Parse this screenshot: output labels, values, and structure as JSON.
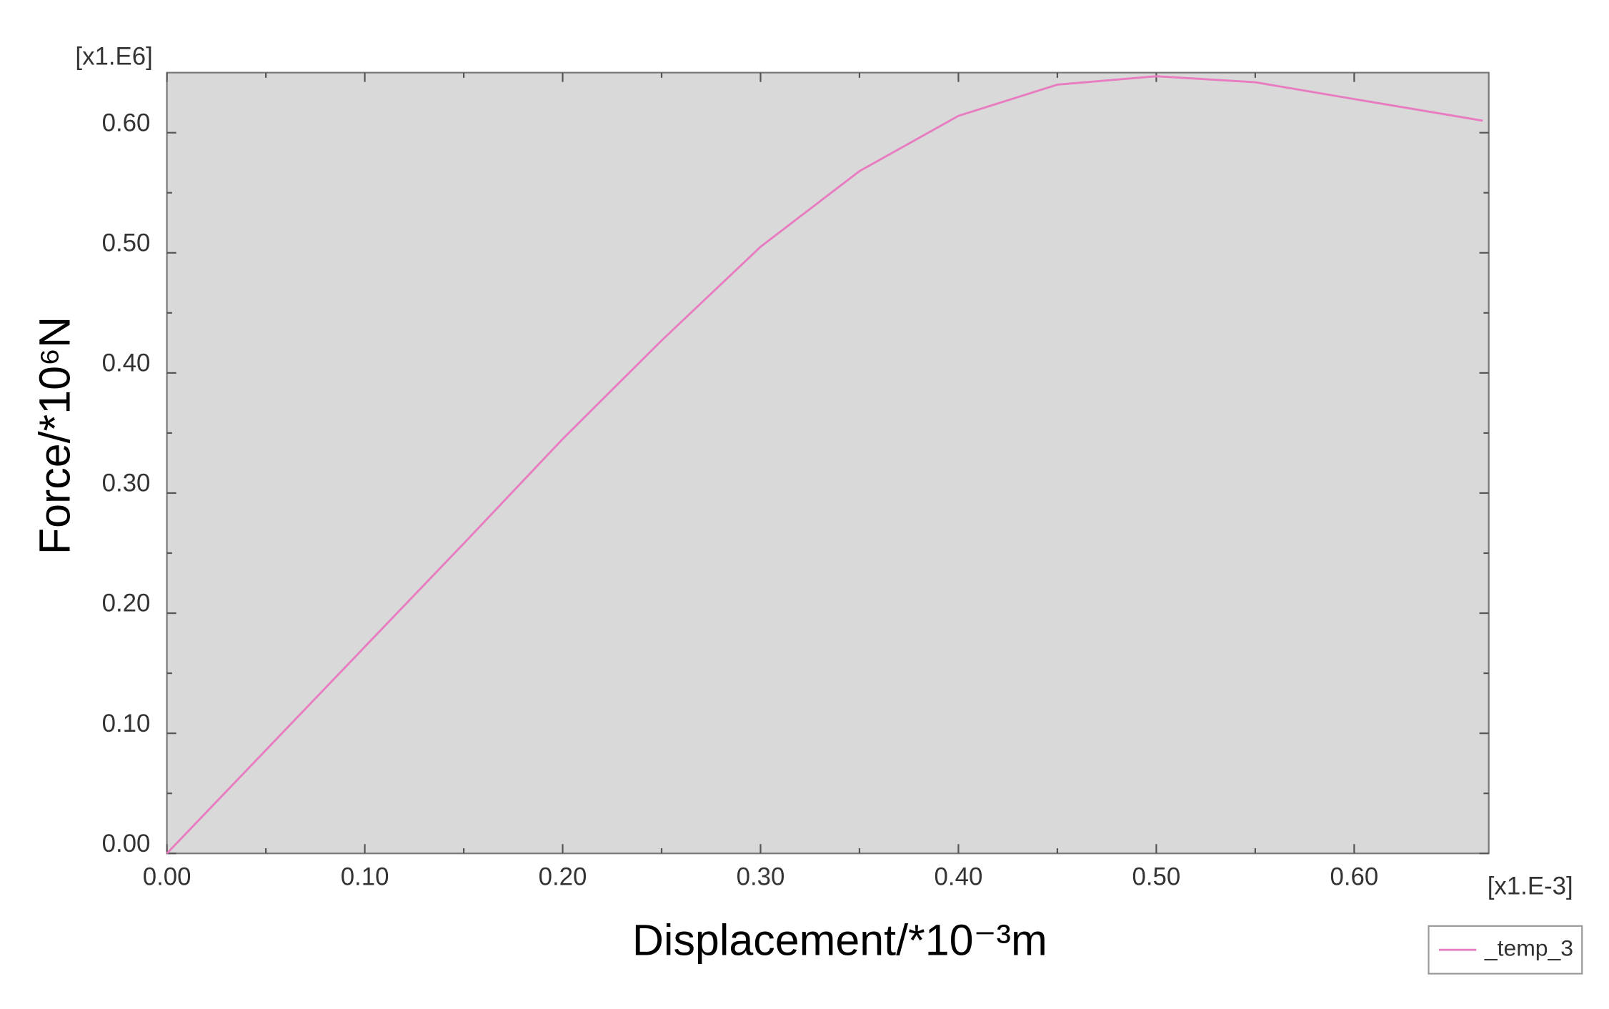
{
  "chart_data": {
    "type": "line",
    "x_label": "Displacement/*10⁻³m",
    "y_label": "Force/*10⁶N",
    "x_multiplier": "[x1.E-3]",
    "y_multiplier": "[x1.E6]",
    "x": [
      0,
      0.05,
      0.1,
      0.15,
      0.2,
      0.25,
      0.3,
      0.35,
      0.4,
      0.45,
      0.5,
      0.55,
      0.6,
      0.665
    ],
    "series": [
      {
        "name": "_temp_3",
        "color": "#e87cc0",
        "values": [
          0,
          0.086,
          0.172,
          0.258,
          0.345,
          0.427,
          0.505,
          0.568,
          0.614,
          0.64,
          0.647,
          0.642,
          0.628,
          0.61
        ]
      }
    ],
    "xlim": [
      0,
      0.668
    ],
    "ylim": [
      0,
      0.65
    ],
    "xticks": [
      {
        "value": 0,
        "label": "0.00"
      },
      {
        "value": 0.1,
        "label": "0.10"
      },
      {
        "value": 0.2,
        "label": "0.20"
      },
      {
        "value": 0.3,
        "label": "0.30"
      },
      {
        "value": 0.4,
        "label": "0.40"
      },
      {
        "value": 0.5,
        "label": "0.50"
      },
      {
        "value": 0.6,
        "label": "0.60"
      }
    ],
    "yticks": [
      {
        "value": 0,
        "label": "0.00"
      },
      {
        "value": 0.1,
        "label": "0.10"
      },
      {
        "value": 0.2,
        "label": "0.20"
      },
      {
        "value": 0.3,
        "label": "0.30"
      },
      {
        "value": 0.4,
        "label": "0.40"
      },
      {
        "value": 0.5,
        "label": "0.50"
      },
      {
        "value": 0.6,
        "label": "0.60"
      }
    ],
    "plot_background": "#d9d9d9",
    "legend": "bottom-right"
  }
}
